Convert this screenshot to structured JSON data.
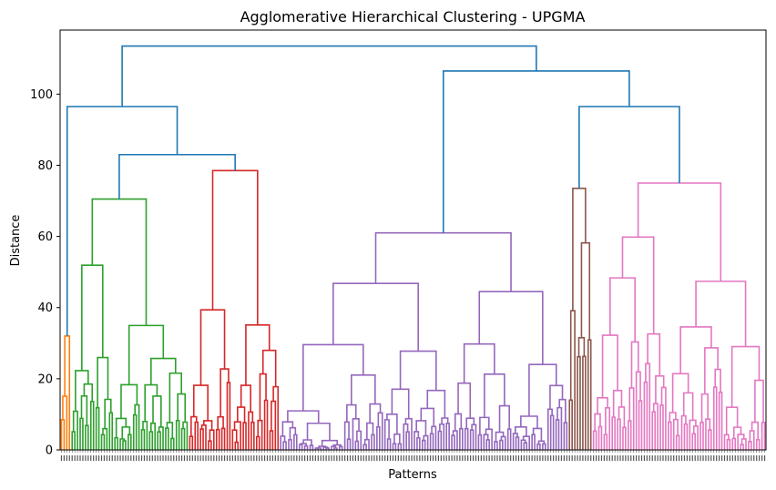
{
  "chart_data": {
    "type": "dendrogram",
    "title": "Agglomerative Hierarchical Clustering - UPGMA",
    "xlabel": "Patterns",
    "ylabel": "Distance",
    "ylim": [
      0,
      118
    ],
    "yticks": [
      0,
      20,
      40,
      60,
      80,
      100
    ],
    "n_leaves": 264,
    "link_color": "#1f77b4",
    "clusters": [
      {
        "color": "#ff7f0e",
        "leaves": 4,
        "height": 32
      },
      {
        "color": "#2ca02c",
        "leaves": 44,
        "height": 70.5
      },
      {
        "color": "#d62728",
        "leaves": 34,
        "height": 78.5
      },
      {
        "color": "#9467bd",
        "leaves": 108,
        "height": 61
      },
      {
        "color": "#8c564b",
        "leaves": 9,
        "height": 73.5
      },
      {
        "color": "#e377c2",
        "leaves": 65,
        "height": 75
      }
    ],
    "top_links": [
      {
        "left": 1,
        "right": 2,
        "height": 83
      },
      {
        "left": 0,
        "right": "1+2",
        "height": 96.5
      },
      {
        "left": 4,
        "right": 5,
        "height": 96.5
      },
      {
        "left": 3,
        "right": "4+5",
        "height": 106.5
      },
      {
        "left": "0+1+2",
        "right": "3+4+5",
        "height": 113.5
      }
    ]
  }
}
